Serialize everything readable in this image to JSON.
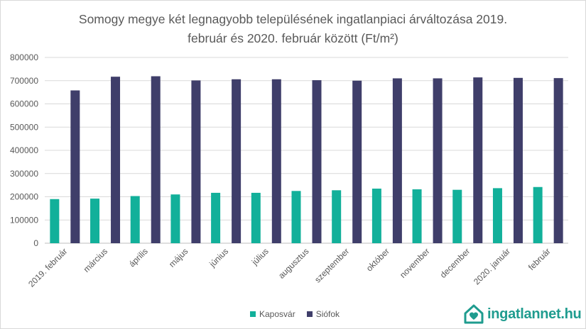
{
  "chart_data": {
    "type": "bar",
    "title_line1": "Somogy megye két legnagyobb településének ingatlanpiaci árváltozása 2019.",
    "title_line2": "február és 2020. február között (Ft/m²)",
    "categories": [
      "2019. február",
      "március",
      "április",
      "május",
      "június",
      "július",
      "augusztus",
      "szeptember",
      "október",
      "november",
      "december",
      "2020. január",
      "február"
    ],
    "series": [
      {
        "name": "Kaposvár",
        "color": "#12b09a",
        "values": [
          190000,
          192000,
          203000,
          210000,
          217000,
          217000,
          225000,
          228000,
          235000,
          232000,
          230000,
          237000,
          242000
        ]
      },
      {
        "name": "Siófok",
        "color": "#3f3e6a",
        "values": [
          658000,
          717000,
          719000,
          701000,
          706000,
          706000,
          702000,
          700000,
          710000,
          710000,
          714000,
          712000,
          711000
        ]
      }
    ],
    "ylim": [
      0,
      800000
    ],
    "yticks": [
      "0",
      "100000",
      "200000",
      "300000",
      "400000",
      "500000",
      "600000",
      "700000",
      "800000"
    ],
    "grid": true,
    "legend_position": "bottom"
  },
  "brand": {
    "name": "ingatlannet.hu",
    "color": "#1f9c8f",
    "icon": "house-heart-icon"
  }
}
